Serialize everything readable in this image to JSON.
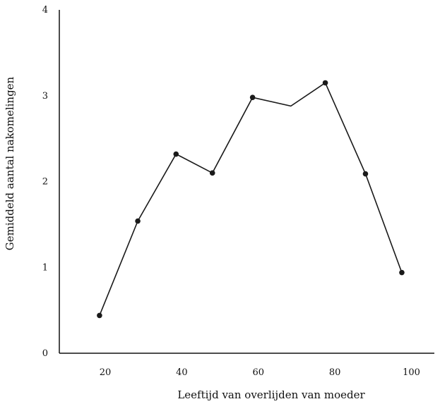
{
  "chart_data": {
    "type": "line",
    "xlabel": "Leeftijd van overlijden van moeder",
    "ylabel": "Gemiddeld aantal nakomelingen",
    "xticks": [
      20,
      40,
      60,
      80,
      100
    ],
    "yticks": [
      0,
      1,
      2,
      3,
      4
    ],
    "xlim": [
      8,
      106
    ],
    "ylim": [
      0,
      4
    ],
    "grid": false,
    "series": [
      {
        "x": [
          18.5,
          28.5,
          38.5,
          48,
          58.5,
          68.5,
          77.5,
          88,
          97.5
        ],
        "y": [
          0.44,
          1.54,
          2.32,
          2.1,
          2.98,
          2.88,
          3.15,
          2.09,
          0.94
        ],
        "markers": [
          true,
          true,
          true,
          true,
          true,
          false,
          true,
          true,
          true
        ]
      }
    ],
    "colors": {
      "line": "#1a1a1a",
      "marker": "#1a1a1a",
      "axis": "#111111"
    }
  }
}
